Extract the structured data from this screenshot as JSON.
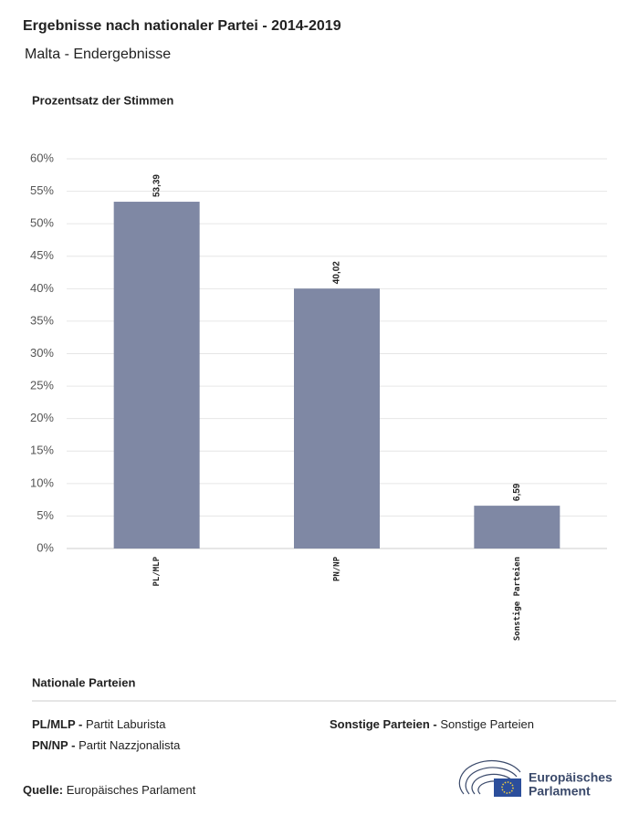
{
  "chart_data": {
    "type": "bar",
    "title": "Ergebnisse nach nationaler Partei - 2014-2019",
    "subtitle": "Malta - Endergebnisse",
    "y_label": "Prozentsatz der Stimmen",
    "categories": [
      "PL/MLP",
      "PN/NP",
      "Sonstige Parteien"
    ],
    "values": [
      53.39,
      40.02,
      6.59
    ],
    "value_labels": [
      "53,39",
      "40,02",
      "6,59"
    ],
    "color": "#7f88a4",
    "ylim": [
      0,
      60
    ],
    "yticks": [
      {
        "value": 0,
        "label": "0%"
      },
      {
        "value": 5,
        "label": "5%"
      },
      {
        "value": 10,
        "label": "10%"
      },
      {
        "value": 15,
        "label": "15%"
      },
      {
        "value": 20,
        "label": "20%"
      },
      {
        "value": 25,
        "label": "25%"
      },
      {
        "value": 30,
        "label": "30%"
      },
      {
        "value": 35,
        "label": "35%"
      },
      {
        "value": 40,
        "label": "40%"
      },
      {
        "value": 45,
        "label": "45%"
      },
      {
        "value": 50,
        "label": "50%"
      },
      {
        "value": 55,
        "label": "55%"
      },
      {
        "value": 60,
        "label": "60%"
      }
    ],
    "grid": true
  },
  "legend": {
    "title": "Nationale Parteien",
    "items": [
      {
        "abbr": "PL/MLP -",
        "name": "Partit Laburista"
      },
      {
        "abbr": "PN/NP -",
        "name": "Partit Nazzjonalista"
      },
      {
        "abbr": "Sonstige Parteien -",
        "name": "Sonstige Parteien"
      }
    ]
  },
  "source": {
    "label": "Quelle:",
    "text": "Europäisches Parlament"
  },
  "logo": {
    "line1": "Europäisches",
    "line2": "Parlament"
  }
}
